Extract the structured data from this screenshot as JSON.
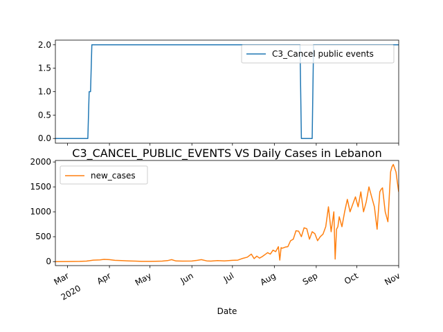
{
  "chart_data": [
    {
      "type": "line",
      "title": "",
      "xlabel": "",
      "ylabel": "",
      "ylim": [
        -0.1,
        2.1
      ],
      "yticks": [
        0.0,
        0.5,
        1.0,
        1.5,
        2.0
      ],
      "ytick_labels": [
        "0.0",
        "0.5",
        "1.0",
        "1.5",
        "2.0"
      ],
      "grid": false,
      "legend_position": "top-right",
      "series": [
        {
          "name": "C3_Cancel public events",
          "color": "#1f77b4",
          "x": [
            "2020-02-21",
            "2020-03-16",
            "2020-03-17",
            "2020-03-18",
            "2020-03-19",
            "2020-08-20",
            "2020-08-21",
            "2020-08-29",
            "2020-08-30",
            "2020-11-01"
          ],
          "values": [
            0,
            0,
            1,
            1,
            2,
            2,
            0,
            0,
            2,
            2
          ]
        }
      ]
    },
    {
      "type": "line",
      "title": "C3_CANCEL_PUBLIC_EVENTS VS Daily Cases in Lebanon",
      "xlabel": "Date",
      "ylabel": "",
      "ylim": [
        -80,
        2030
      ],
      "yticks": [
        0,
        500,
        1000,
        1500,
        2000
      ],
      "ytick_labels": [
        "0",
        "500",
        "1000",
        "1500",
        "2000"
      ],
      "x_range": [
        "2020-02-21",
        "2020-11-01"
      ],
      "xtick_labels": [
        {
          "date": "2020-03-01",
          "label": "Mar",
          "sublabel": "2020"
        },
        {
          "date": "2020-04-01",
          "label": "Apr"
        },
        {
          "date": "2020-05-01",
          "label": "May"
        },
        {
          "date": "2020-06-01",
          "label": "Jun"
        },
        {
          "date": "2020-07-01",
          "label": "Jul"
        },
        {
          "date": "2020-08-01",
          "label": "Aug"
        },
        {
          "date": "2020-09-01",
          "label": "Sep"
        },
        {
          "date": "2020-10-01",
          "label": "Oct"
        },
        {
          "date": "2020-11-01",
          "label": "Nov"
        }
      ],
      "grid": false,
      "legend_position": "top-left",
      "series": [
        {
          "name": "new_cases",
          "color": "#ff7f0e",
          "x": [
            "2020-02-21",
            "2020-03-01",
            "2020-03-10",
            "2020-03-15",
            "2020-03-20",
            "2020-03-25",
            "2020-03-28",
            "2020-04-01",
            "2020-04-05",
            "2020-04-10",
            "2020-04-15",
            "2020-04-20",
            "2020-04-25",
            "2020-05-01",
            "2020-05-05",
            "2020-05-10",
            "2020-05-14",
            "2020-05-17",
            "2020-05-20",
            "2020-05-25",
            "2020-06-01",
            "2020-06-05",
            "2020-06-08",
            "2020-06-12",
            "2020-06-15",
            "2020-06-20",
            "2020-06-25",
            "2020-07-01",
            "2020-07-05",
            "2020-07-08",
            "2020-07-12",
            "2020-07-15",
            "2020-07-17",
            "2020-07-19",
            "2020-07-21",
            "2020-07-23",
            "2020-07-25",
            "2020-07-27",
            "2020-07-29",
            "2020-07-31",
            "2020-08-02",
            "2020-08-04",
            "2020-08-05",
            "2020-08-06",
            "2020-08-07",
            "2020-08-09",
            "2020-08-11",
            "2020-08-13",
            "2020-08-15",
            "2020-08-17",
            "2020-08-19",
            "2020-08-21",
            "2020-08-23",
            "2020-08-25",
            "2020-08-27",
            "2020-08-29",
            "2020-08-31",
            "2020-09-02",
            "2020-09-04",
            "2020-09-06",
            "2020-09-08",
            "2020-09-10",
            "2020-09-12",
            "2020-09-14",
            "2020-09-15",
            "2020-09-16",
            "2020-09-17",
            "2020-09-18",
            "2020-09-20",
            "2020-09-22",
            "2020-09-24",
            "2020-09-26",
            "2020-09-28",
            "2020-09-30",
            "2020-10-02",
            "2020-10-04",
            "2020-10-06",
            "2020-10-08",
            "2020-10-10",
            "2020-10-12",
            "2020-10-14",
            "2020-10-16",
            "2020-10-18",
            "2020-10-19",
            "2020-10-20",
            "2020-10-22",
            "2020-10-24",
            "2020-10-26",
            "2020-10-27",
            "2020-10-28",
            "2020-10-30",
            "2020-10-31",
            "2020-11-01"
          ],
          "values": [
            0,
            2,
            5,
            10,
            30,
            35,
            45,
            40,
            25,
            20,
            15,
            10,
            5,
            5,
            8,
            10,
            20,
            40,
            15,
            10,
            12,
            25,
            40,
            15,
            10,
            20,
            15,
            25,
            30,
            60,
            90,
            150,
            60,
            110,
            70,
            100,
            140,
            180,
            150,
            230,
            200,
            300,
            30,
            280,
            270,
            290,
            300,
            420,
            450,
            620,
            610,
            500,
            680,
            660,
            450,
            600,
            560,
            420,
            500,
            550,
            700,
            1100,
            600,
            1000,
            50,
            650,
            700,
            900,
            700,
            1000,
            1250,
            1000,
            1150,
            1300,
            1100,
            1400,
            1000,
            1200,
            1500,
            1300,
            1100,
            650,
            1400,
            1450,
            1480,
            1000,
            800,
            1800,
            1900,
            1950,
            1800,
            1600,
            1400
          ]
        }
      ]
    }
  ]
}
